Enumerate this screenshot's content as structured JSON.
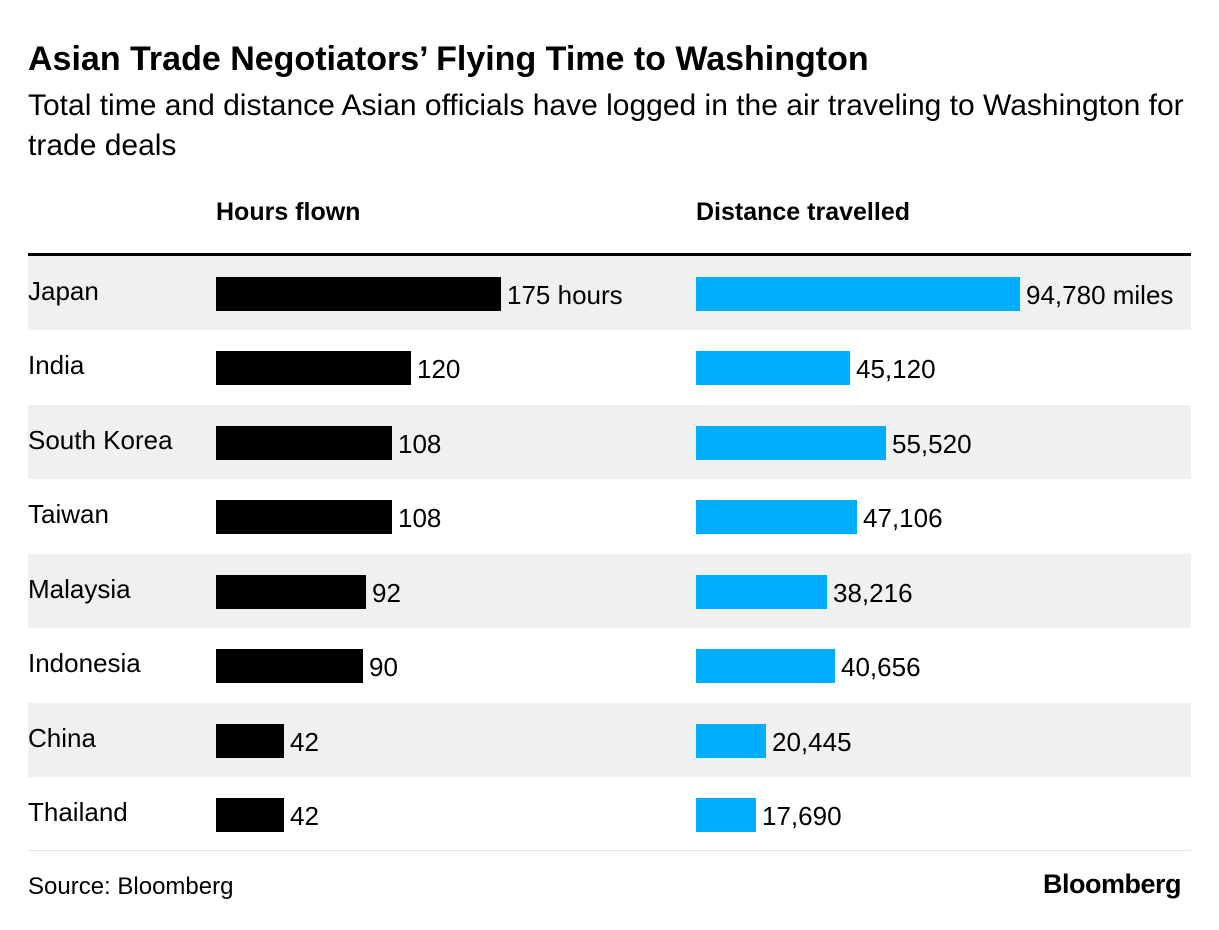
{
  "header": {
    "title": "Asian Trade Negotiators’ Flying Time to Washington",
    "subtitle": "Total time and distance Asian officials have logged in the air traveling to Washington for trade deals"
  },
  "columns": {
    "hours_label": "Hours flown",
    "distance_label": "Distance travelled"
  },
  "footer": {
    "source": "Source: Bloomberg",
    "logo": "Bloomberg"
  },
  "colors": {
    "hours_bar": "#000000",
    "distance_bar": "#00aeff",
    "row_shade": "#f0f0f0"
  },
  "chart_data": {
    "type": "bar",
    "orientation": "horizontal",
    "categories": [
      "Japan",
      "India",
      "South Korea",
      "Taiwan",
      "Malaysia",
      "Indonesia",
      "China",
      "Thailand"
    ],
    "series": [
      {
        "name": "Hours flown",
        "values": [
          175,
          120,
          108,
          108,
          92,
          90,
          42,
          42
        ],
        "labels": [
          "175 hours",
          "120",
          "108",
          "108",
          "92",
          "90",
          "42",
          "42"
        ]
      },
      {
        "name": "Distance travelled",
        "values": [
          94780,
          45120,
          55520,
          47106,
          38216,
          40656,
          20445,
          17690
        ],
        "labels": [
          "94,780 miles",
          "45,120",
          "55,520",
          "47,106",
          "38,216",
          "40,656",
          "20,445",
          "17,690"
        ]
      }
    ]
  }
}
